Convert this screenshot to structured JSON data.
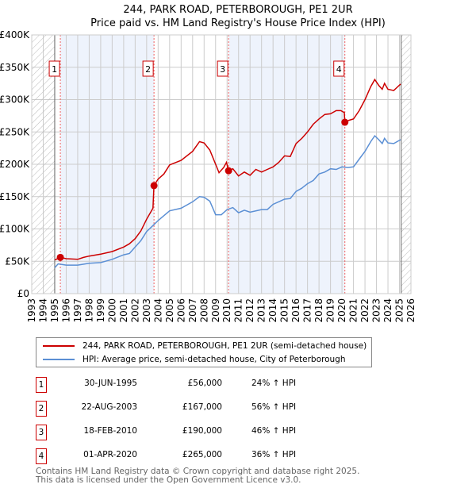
{
  "chart_data": {
    "type": "line",
    "title": "244, PARK ROAD, PETERBOROUGH, PE1 2UR",
    "subtitle": "Price paid vs. HM Land Registry's House Price Index (HPI)",
    "xlim": [
      1993,
      2026
    ],
    "ylim": [
      0,
      400000
    ],
    "x_ticks": [
      "1993",
      "1994",
      "1995",
      "1996",
      "1997",
      "1998",
      "1999",
      "2000",
      "2001",
      "2002",
      "2003",
      "2004",
      "2005",
      "2006",
      "2007",
      "2008",
      "2009",
      "2010",
      "2011",
      "2012",
      "2013",
      "2014",
      "2015",
      "2016",
      "2017",
      "2018",
      "2019",
      "2020",
      "2021",
      "2022",
      "2023",
      "2024",
      "2025",
      "2026"
    ],
    "y_ticks": [
      {
        "v": 0,
        "label": "£0"
      },
      {
        "v": 50000,
        "label": "£50K"
      },
      {
        "v": 100000,
        "label": "£100K"
      },
      {
        "v": 150000,
        "label": "£150K"
      },
      {
        "v": 200000,
        "label": "£200K"
      },
      {
        "v": 250000,
        "label": "£250K"
      },
      {
        "v": 300000,
        "label": "£300K"
      },
      {
        "v": 350000,
        "label": "£350K"
      },
      {
        "v": 400000,
        "label": "£400K"
      }
    ],
    "grid": true,
    "hatched_ranges": [
      [
        1993,
        1995.0
      ],
      [
        2025.15,
        2026
      ]
    ],
    "shaded_ranges": [
      [
        1995.5,
        2003.64
      ],
      [
        2010.13,
        2020.25
      ]
    ],
    "series": [
      {
        "name": "244, PARK ROAD, PETERBOROUGH, PE1 2UR (semi-detached house)",
        "color": "#cc0000",
        "x": [
          1995.0,
          1995.5,
          1996,
          1997,
          1997.5,
          1998,
          1999,
          2000,
          2001,
          2001.5,
          2002,
          2002.5,
          2003,
          2003.55,
          2003.64,
          2004,
          2004.5,
          2005,
          2006,
          2007,
          2007.6,
          2008,
          2008.5,
          2009,
          2009.3,
          2009.7,
          2009.95,
          2010.13,
          2010.5,
          2011,
          2011.5,
          2012,
          2012.5,
          2013,
          2013.5,
          2014,
          2014.5,
          2015,
          2015.5,
          2016,
          2016.5,
          2017,
          2017.5,
          2018,
          2018.5,
          2019,
          2019.5,
          2019.9,
          2020.2,
          2020.25,
          2020.6,
          2021,
          2021.5,
          2022,
          2022.5,
          2022.85,
          2023.2,
          2023.5,
          2023.7,
          2024,
          2024.5,
          2024.8,
          2025.1
        ],
        "y": [
          52000,
          56000,
          54000,
          53000,
          56000,
          58000,
          61000,
          65000,
          72000,
          77000,
          85000,
          97000,
          115000,
          132000,
          167000,
          177000,
          185000,
          199000,
          206000,
          220000,
          235000,
          233000,
          222000,
          200000,
          187000,
          195000,
          203000,
          190000,
          193000,
          182000,
          188000,
          183000,
          192000,
          188000,
          192000,
          196000,
          203000,
          213000,
          212000,
          232000,
          240000,
          250000,
          262000,
          270000,
          277000,
          278000,
          283000,
          283000,
          280000,
          265000,
          268000,
          270000,
          283000,
          300000,
          320000,
          331000,
          322000,
          316000,
          325000,
          316000,
          314000,
          319000,
          324000
        ]
      },
      {
        "name": "HPI: Average price, semi-detached house, City of Peterborough",
        "color": "#5b8fd4",
        "x": [
          1995.0,
          1995.3,
          1996,
          1997,
          1998,
          1999,
          2000,
          2001,
          2001.5,
          2002,
          2002.5,
          2003,
          2003.6,
          2004,
          2005,
          2006,
          2007,
          2007.6,
          2008,
          2008.5,
          2009,
          2009.5,
          2010,
          2010.5,
          2011,
          2011.5,
          2012,
          2013,
          2013.5,
          2014,
          2015,
          2015.5,
          2016,
          2016.5,
          2017,
          2017.5,
          2018,
          2018.5,
          2019,
          2019.5,
          2020,
          2020.5,
          2021,
          2021.5,
          2022,
          2022.5,
          2022.85,
          2023.2,
          2023.5,
          2023.7,
          2024,
          2024.5,
          2025.1
        ],
        "y": [
          40000,
          46000,
          44000,
          44000,
          47000,
          48000,
          53000,
          60000,
          62000,
          72000,
          82000,
          96000,
          106000,
          113000,
          128000,
          132000,
          142000,
          150000,
          149000,
          143000,
          122000,
          122000,
          130000,
          133000,
          125000,
          129000,
          126000,
          130000,
          130000,
          138000,
          146000,
          147000,
          158000,
          163000,
          170000,
          175000,
          185000,
          188000,
          193000,
          192000,
          196000,
          195000,
          196000,
          208000,
          220000,
          235000,
          244000,
          238000,
          232000,
          240000,
          233000,
          232000,
          238000
        ]
      }
    ],
    "sales": [
      {
        "label": "1",
        "x": 1995.49,
        "y": 56000
      },
      {
        "label": "2",
        "x": 2003.64,
        "y": 167000
      },
      {
        "label": "3",
        "x": 2010.13,
        "y": 190000
      },
      {
        "label": "4",
        "x": 2020.25,
        "y": 265000
      }
    ]
  },
  "legend": {
    "property": "244, PARK ROAD, PETERBOROUGH, PE1 2UR (semi-detached house)",
    "hpi": "HPI: Average price, semi-detached house, City of Peterborough"
  },
  "transactions": [
    {
      "num": "1",
      "date": "30-JUN-1995",
      "price": "£56,000",
      "hpi": "24% ↑ HPI"
    },
    {
      "num": "2",
      "date": "22-AUG-2003",
      "price": "£167,000",
      "hpi": "56% ↑ HPI"
    },
    {
      "num": "3",
      "date": "18-FEB-2010",
      "price": "£190,000",
      "hpi": "46% ↑ HPI"
    },
    {
      "num": "4",
      "date": "01-APR-2020",
      "price": "£265,000",
      "hpi": "36% ↑ HPI"
    }
  ],
  "footer": {
    "line1": "Contains HM Land Registry data © Crown copyright and database right 2025.",
    "line2": "This data is licensed under the Open Government Licence v3.0."
  },
  "colors": {
    "property": "#cc0000",
    "hpi": "#5b8fd4",
    "shade": "#eef3fc"
  }
}
